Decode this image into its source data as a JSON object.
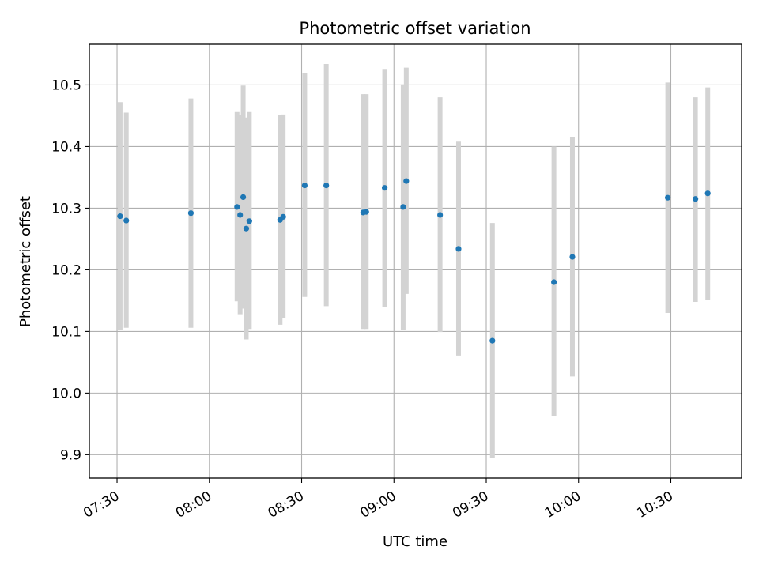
{
  "chart_data": {
    "type": "scatter",
    "title": "Photometric offset variation",
    "xlabel": "UTC time",
    "ylabel": "Photometric offset",
    "x_axis": {
      "kind": "time",
      "range": [
        "07:21",
        "10:53"
      ],
      "ticks": [
        "07:30",
        "08:00",
        "08:30",
        "09:00",
        "09:30",
        "10:00",
        "10:30"
      ]
    },
    "y_axis": {
      "range": [
        9.862,
        10.566
      ],
      "ticks": [
        "9.9",
        "10.0",
        "10.1",
        "10.2",
        "10.3",
        "10.4",
        "10.5"
      ]
    },
    "grid": true,
    "colors": {
      "point": "#1f77b4",
      "errorbar": "#d3d3d3",
      "grid": "#b0b0b0"
    },
    "series": [
      {
        "points": [
          {
            "x": "07:31",
            "y": 10.287,
            "lo": 10.103,
            "hi": 10.472
          },
          {
            "x": "07:33",
            "y": 10.28,
            "lo": 10.106,
            "hi": 10.455
          },
          {
            "x": "07:54",
            "y": 10.292,
            "lo": 10.106,
            "hi": 10.478
          },
          {
            "x": "08:09",
            "y": 10.302,
            "lo": 10.149,
            "hi": 10.456
          },
          {
            "x": "08:10",
            "y": 10.289,
            "lo": 10.128,
            "hi": 10.451
          },
          {
            "x": "08:11",
            "y": 10.318,
            "lo": 10.137,
            "hi": 10.499
          },
          {
            "x": "08:12",
            "y": 10.267,
            "lo": 10.087,
            "hi": 10.447
          },
          {
            "x": "08:13",
            "y": 10.279,
            "lo": 10.104,
            "hi": 10.456
          },
          {
            "x": "08:23",
            "y": 10.281,
            "lo": 10.111,
            "hi": 10.451
          },
          {
            "x": "08:24",
            "y": 10.286,
            "lo": 10.121,
            "hi": 10.452
          },
          {
            "x": "08:31",
            "y": 10.337,
            "lo": 10.156,
            "hi": 10.519
          },
          {
            "x": "08:38",
            "y": 10.337,
            "lo": 10.141,
            "hi": 10.534
          },
          {
            "x": "08:50",
            "y": 10.293,
            "lo": 10.104,
            "hi": 10.485
          },
          {
            "x": "08:51",
            "y": 10.294,
            "lo": 10.104,
            "hi": 10.485
          },
          {
            "x": "08:57",
            "y": 10.333,
            "lo": 10.14,
            "hi": 10.526
          },
          {
            "x": "09:03",
            "y": 10.302,
            "lo": 10.102,
            "hi": 10.501
          },
          {
            "x": "09:04",
            "y": 10.344,
            "lo": 10.161,
            "hi": 10.528
          },
          {
            "x": "09:15",
            "y": 10.289,
            "lo": 10.099,
            "hi": 10.48
          },
          {
            "x": "09:21",
            "y": 10.234,
            "lo": 10.061,
            "hi": 10.408
          },
          {
            "x": "09:32",
            "y": 10.085,
            "lo": 9.894,
            "hi": 10.276
          },
          {
            "x": "09:52",
            "y": 10.18,
            "lo": 9.962,
            "hi": 10.4
          },
          {
            "x": "09:58",
            "y": 10.221,
            "lo": 10.027,
            "hi": 10.416
          },
          {
            "x": "10:29",
            "y": 10.317,
            "lo": 10.13,
            "hi": 10.504
          },
          {
            "x": "10:38",
            "y": 10.315,
            "lo": 10.148,
            "hi": 10.48
          },
          {
            "x": "10:42",
            "y": 10.324,
            "lo": 10.151,
            "hi": 10.496
          }
        ]
      }
    ]
  }
}
